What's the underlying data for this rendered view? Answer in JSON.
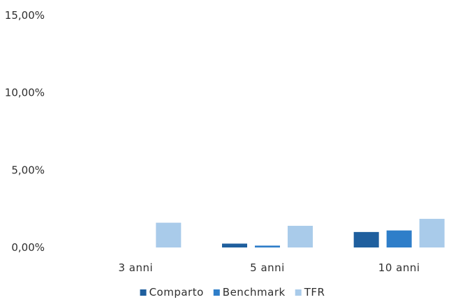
{
  "chart_data": {
    "type": "bar",
    "categories": [
      "3 anni",
      "5 anni",
      "10 anni"
    ],
    "series": [
      {
        "name": "Comparto",
        "color": "#1f5f9e",
        "values": [
          0.0,
          0.25,
          1.0
        ]
      },
      {
        "name": "Benchmark",
        "color": "#2f7ec9",
        "values": [
          0.0,
          0.12,
          1.1
        ]
      },
      {
        "name": "TFR",
        "color": "#a9cbea",
        "values": [
          1.6,
          1.4,
          1.85
        ]
      }
    ],
    "yticks": [
      0,
      5,
      10,
      15
    ],
    "ytick_labels": [
      "0,00%",
      "5,00%",
      "10,00%",
      "15,00%"
    ],
    "ylim": [
      0,
      15
    ],
    "grid": false,
    "legend_position": "bottom"
  }
}
